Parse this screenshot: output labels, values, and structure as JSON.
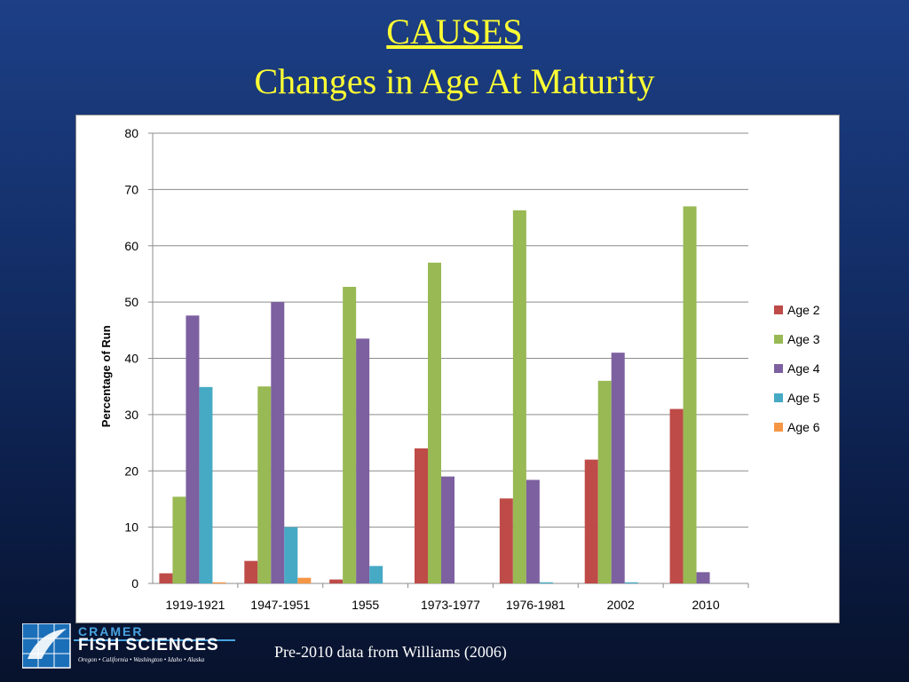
{
  "slide": {
    "title": "CAUSES",
    "subtitle": "Changes in Age At Maturity",
    "source_note": "Pre-2010 data from Williams (2006)"
  },
  "logo": {
    "line1": "CRAMER",
    "line2": "FISH SCIENCES",
    "line3": "Oregon • California • Washington • Idaho • Alaska"
  },
  "colors": {
    "age2": "#be4b48",
    "age3": "#98b954",
    "age4": "#7d60a0",
    "age5": "#46aac5",
    "age6": "#f59645"
  },
  "chart_data": {
    "type": "bar",
    "title": "",
    "xlabel": "",
    "ylabel": "Percentage of Run",
    "ylim": [
      0,
      80
    ],
    "yticks": [
      0,
      10,
      20,
      30,
      40,
      50,
      60,
      70,
      80
    ],
    "grid": true,
    "legend_position": "right",
    "categories": [
      "1919-1921",
      "1947-1951",
      "1955",
      "1973-1977",
      "1976-1981",
      "2002",
      "2010"
    ],
    "series": [
      {
        "name": "Age 2",
        "values": [
          1.8,
          4,
          0.7,
          24,
          15.1,
          22,
          31
        ]
      },
      {
        "name": "Age 3",
        "values": [
          15.4,
          35,
          52.7,
          57,
          66.3,
          36,
          67
        ]
      },
      {
        "name": "Age 4",
        "values": [
          47.6,
          50,
          43.5,
          19,
          18.4,
          41,
          2
        ]
      },
      {
        "name": "Age 5",
        "values": [
          34.9,
          10,
          3.1,
          0,
          0.2,
          0.2,
          0
        ]
      },
      {
        "name": "Age 6",
        "values": [
          0.2,
          1,
          0,
          0,
          0,
          0,
          0
        ]
      }
    ]
  }
}
